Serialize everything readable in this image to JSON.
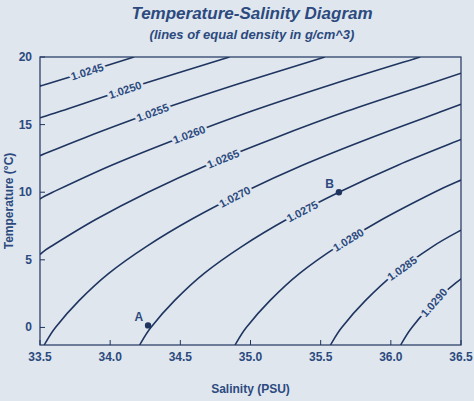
{
  "chart_data": {
    "type": "line",
    "title": "Temperature-Salinity Diagram",
    "subtitle": "(lines of equal density in g/cm^3)",
    "x_label": "Salinity (PSU)",
    "y_label": "Temperature (°C)",
    "color": "#1f3560",
    "xlim": [
      33.5,
      36.5
    ],
    "ylim": [
      -1.3,
      20
    ],
    "xticks": [
      33.5,
      {
        "value": 34,
        "label": "34.0"
      },
      34.5,
      {
        "value": 35,
        "label": "35.0"
      },
      35.5,
      {
        "value": 36,
        "label": "36.0"
      },
      36.5
    ],
    "yticks": [
      0,
      5,
      10,
      15,
      20
    ],
    "grid": false,
    "series": [
      {
        "name": "1.0245",
        "x": [
          33.5,
          33.55,
          34.17
        ],
        "values": [
          17.9,
          18,
          20
        ]
      },
      {
        "name": "1.0250",
        "x": [
          33.5,
          33.65,
          34.23,
          34.85
        ],
        "values": [
          15.5,
          16,
          18,
          20
        ]
      },
      {
        "name": "1.0255",
        "x": [
          33.5,
          33.81,
          34.33,
          34.91,
          35.53
        ],
        "values": [
          12.7,
          14,
          16,
          18,
          20
        ]
      },
      {
        "name": "1.0260",
        "x": [
          33.5,
          33.59,
          34.01,
          34.49,
          35.01,
          35.59,
          36.21
        ],
        "values": [
          9.5,
          10,
          12,
          14,
          16,
          18,
          20
        ]
      },
      {
        "name": "1.0265",
        "x": [
          33.5,
          33.58,
          33.9,
          34.27,
          34.69,
          35.17,
          35.69,
          36.27,
          36.5
        ],
        "values": [
          5.4,
          6,
          8,
          10,
          12,
          14,
          16,
          18,
          18.8
        ]
      },
      {
        "name": "1.0270",
        "x": [
          33.53,
          33.61,
          33.78,
          33.99,
          34.26,
          34.58,
          34.95,
          35.37,
          35.85,
          36.37,
          36.5
        ],
        "values": [
          -1.3,
          0,
          2,
          4,
          6,
          8,
          10,
          12,
          14,
          16,
          16.5
        ]
      },
      {
        "name": "1.0275",
        "x": [
          34.21,
          34.29,
          34.46,
          34.67,
          34.94,
          35.26,
          35.63,
          36.05,
          36.5
        ],
        "values": [
          -1.3,
          0,
          2,
          4,
          6,
          8,
          10,
          12,
          13.9
        ]
      },
      {
        "name": "1.0280",
        "x": [
          34.89,
          34.97,
          35.14,
          35.35,
          35.62,
          35.94,
          36.31,
          36.5
        ],
        "values": [
          -1.3,
          0,
          2,
          4,
          6,
          8,
          10,
          10.9
        ]
      },
      {
        "name": "1.0285",
        "x": [
          35.57,
          35.65,
          35.82,
          36.03,
          36.3,
          36.5
        ],
        "values": [
          -1.3,
          0,
          2,
          4,
          6,
          7.2
        ]
      },
      {
        "name": "1.0290",
        "x": [
          36.07,
          36.15,
          36.32,
          36.5
        ],
        "values": [
          -1.3,
          0,
          2,
          3.6
        ]
      }
    ],
    "annotations": [
      {
        "text": "A",
        "x": 34.27,
        "y": 0.15
      },
      {
        "text": "B",
        "x": 35.63,
        "y": 10
      }
    ]
  }
}
